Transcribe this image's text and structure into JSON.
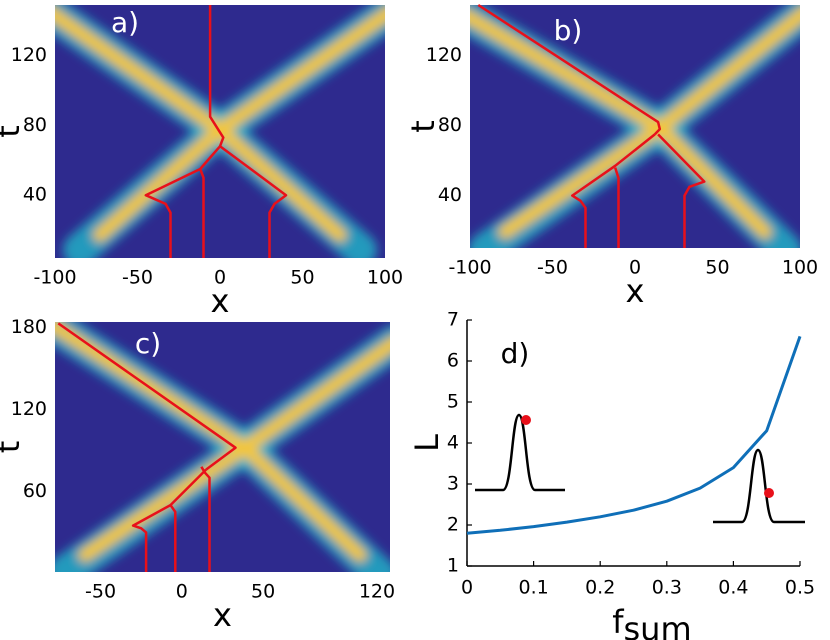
{
  "chart_data": [
    {
      "type": "line",
      "annotation": "a)",
      "xlabel": "x",
      "ylabel": "t",
      "background": "#2e2a8e",
      "xlim": [
        -100,
        100
      ],
      "xticks": [
        -100,
        -50,
        0,
        50,
        100
      ],
      "ylim": [
        4,
        149
      ],
      "yticks": [
        40,
        80,
        120
      ],
      "series": [
        {
          "color": "#e8101a",
          "x": [
            -30,
            -30,
            -33,
            -45,
            -12,
            0
          ],
          "values": [
            4,
            30,
            35,
            40,
            55,
            68
          ]
        },
        {
          "color": "#e8101a",
          "x": [
            -10,
            -10,
            -12
          ],
          "values": [
            4,
            50,
            55
          ]
        },
        {
          "color": "#e8101a",
          "x": [
            30,
            30,
            33,
            40,
            0
          ],
          "values": [
            4,
            30,
            35,
            40,
            68
          ]
        },
        {
          "color": "#e8101a",
          "x": [
            0,
            2,
            -6,
            -6
          ],
          "values": [
            68,
            73,
            85,
            149
          ]
        }
      ]
    },
    {
      "type": "line",
      "annotation": "b)",
      "xlabel": "x",
      "ylabel": "t",
      "background": "#2e2a8e",
      "xlim": [
        -100,
        100
      ],
      "xticks": [
        -100,
        -50,
        0,
        50,
        100
      ],
      "ylim": [
        10,
        149
      ],
      "yticks": [
        40,
        80,
        120
      ],
      "series": [
        {
          "color": "#e8101a",
          "x": [
            -30,
            -30,
            -33,
            -38,
            -12,
            12
          ],
          "values": [
            10,
            33,
            37,
            40,
            57,
            75
          ]
        },
        {
          "color": "#e8101a",
          "x": [
            -10,
            -10,
            -12
          ],
          "values": [
            10,
            50,
            56
          ]
        },
        {
          "color": "#e8101a",
          "x": [
            30,
            30,
            33,
            42,
            14
          ],
          "values": [
            10,
            40,
            45,
            48,
            75
          ]
        },
        {
          "color": "#e8101a",
          "x": [
            12,
            15,
            14,
            -95
          ],
          "values": [
            75,
            78,
            82,
            149
          ]
        }
      ]
    },
    {
      "type": "line",
      "annotation": "c)",
      "xlabel": "x",
      "ylabel": "t",
      "background": "#2e2a8e",
      "xlim": [
        -78,
        128
      ],
      "xticks": [
        -50,
        0,
        50,
        120
      ],
      "ylim": [
        1,
        184
      ],
      "yticks": [
        60,
        120,
        180
      ],
      "series": [
        {
          "color": "#e8101a",
          "x": [
            -22,
            -22,
            -25,
            -30,
            -7,
            15
          ],
          "values": [
            1,
            30,
            33,
            35,
            50,
            76
          ]
        },
        {
          "color": "#e8101a",
          "x": [
            -4,
            -4,
            -7
          ],
          "values": [
            1,
            45,
            50
          ]
        },
        {
          "color": "#e8101a",
          "x": [
            17,
            17,
            14,
            12
          ],
          "values": [
            1,
            70,
            74,
            78
          ]
        },
        {
          "color": "#e8101a",
          "x": [
            15,
            33,
            -76
          ],
          "values": [
            76,
            92,
            183
          ]
        }
      ]
    },
    {
      "type": "line",
      "annotation": "d)",
      "xlabel": "f",
      "xlabel_subscript": "sum",
      "ylabel": "L",
      "xlim": [
        0,
        0.5
      ],
      "xticks": [
        0,
        0.1,
        0.2,
        0.3,
        0.4,
        0.5
      ],
      "ylim": [
        1,
        7
      ],
      "yticks": [
        1,
        2,
        3,
        4,
        5,
        6,
        7
      ],
      "axes": true,
      "series": [
        {
          "color": "#0f6fb8",
          "x": [
            0,
            0.05,
            0.1,
            0.15,
            0.2,
            0.25,
            0.3,
            0.35,
            0.4,
            0.45,
            0.5
          ],
          "values": [
            1.8,
            1.87,
            1.96,
            2.07,
            2.2,
            2.36,
            2.58,
            2.9,
            3.4,
            4.3,
            6.6
          ]
        }
      ]
    }
  ]
}
